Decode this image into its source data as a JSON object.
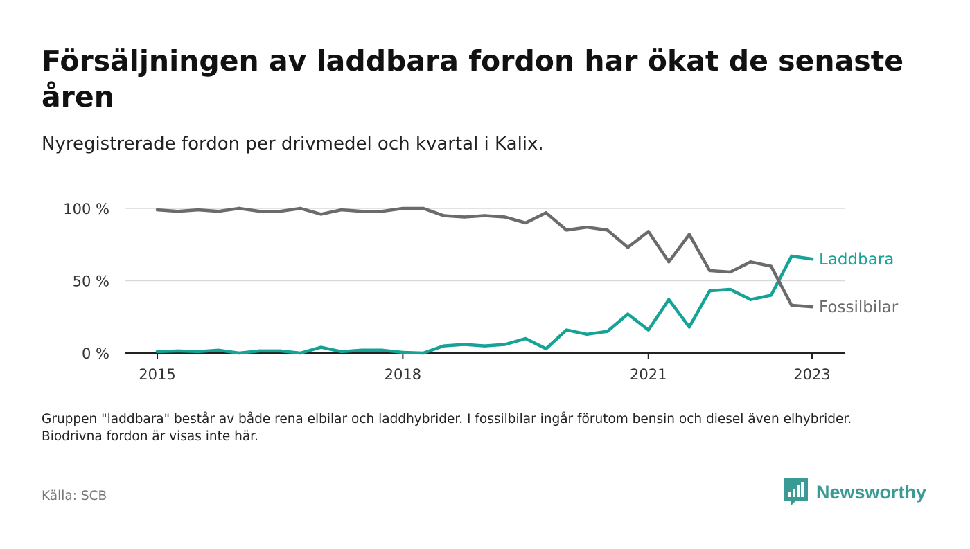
{
  "title": "Försäljningen av laddbara fordon har ökat de senaste åren",
  "subtitle": "Nyregistrerade fordon per drivmedel och kvartal i Kalix.",
  "note": "Gruppen \"laddbara\" består av både rena elbilar och laddhybrider. I fossilbilar ingår förutom bensin och diesel även elhybrider. Biodrivna fordon är visas inte här.",
  "source": "Källa: SCB",
  "logo": {
    "text": "Newsworthy",
    "icon": "bar-chart-speech-bubble-icon",
    "color": "#3a9a95"
  },
  "chart_data": {
    "type": "line",
    "x_unit": "quarter",
    "x_start": "2015 Q1",
    "x": [
      "2015 Q1",
      "2015 Q2",
      "2015 Q3",
      "2015 Q4",
      "2016 Q1",
      "2016 Q2",
      "2016 Q3",
      "2016 Q4",
      "2017 Q1",
      "2017 Q2",
      "2017 Q3",
      "2017 Q4",
      "2018 Q1",
      "2018 Q2",
      "2018 Q3",
      "2018 Q4",
      "2019 Q1",
      "2019 Q2",
      "2019 Q3",
      "2019 Q4",
      "2020 Q1",
      "2020 Q2",
      "2020 Q3",
      "2020 Q4",
      "2021 Q1",
      "2021 Q2",
      "2021 Q3",
      "2021 Q4",
      "2022 Q1",
      "2022 Q2",
      "2022 Q3",
      "2022 Q4",
      "2023 Q1"
    ],
    "x_ticks": [
      "2015",
      "2018",
      "2021",
      "2023"
    ],
    "y_ticks": [
      "0 %",
      "50 %",
      "100 %"
    ],
    "ylim": [
      0,
      100
    ],
    "grid": true,
    "series": [
      {
        "name": "Laddbara",
        "color": "#14a396",
        "values": [
          1,
          1.5,
          1,
          2,
          0,
          1.5,
          1.5,
          0,
          4,
          1,
          2,
          2,
          0.5,
          0,
          5,
          6,
          5,
          6,
          10,
          3,
          16,
          13,
          15,
          27,
          16,
          37,
          18,
          43,
          44,
          37,
          40,
          67,
          65
        ]
      },
      {
        "name": "Fossilbilar",
        "color": "#6b6b6e",
        "values": [
          99,
          98,
          99,
          98,
          100,
          98,
          98,
          100,
          96,
          99,
          98,
          98,
          100,
          100,
          95,
          94,
          95,
          94,
          90,
          97,
          85,
          87,
          85,
          73,
          84,
          63,
          82,
          57,
          56,
          63,
          60,
          33,
          32
        ]
      }
    ]
  }
}
